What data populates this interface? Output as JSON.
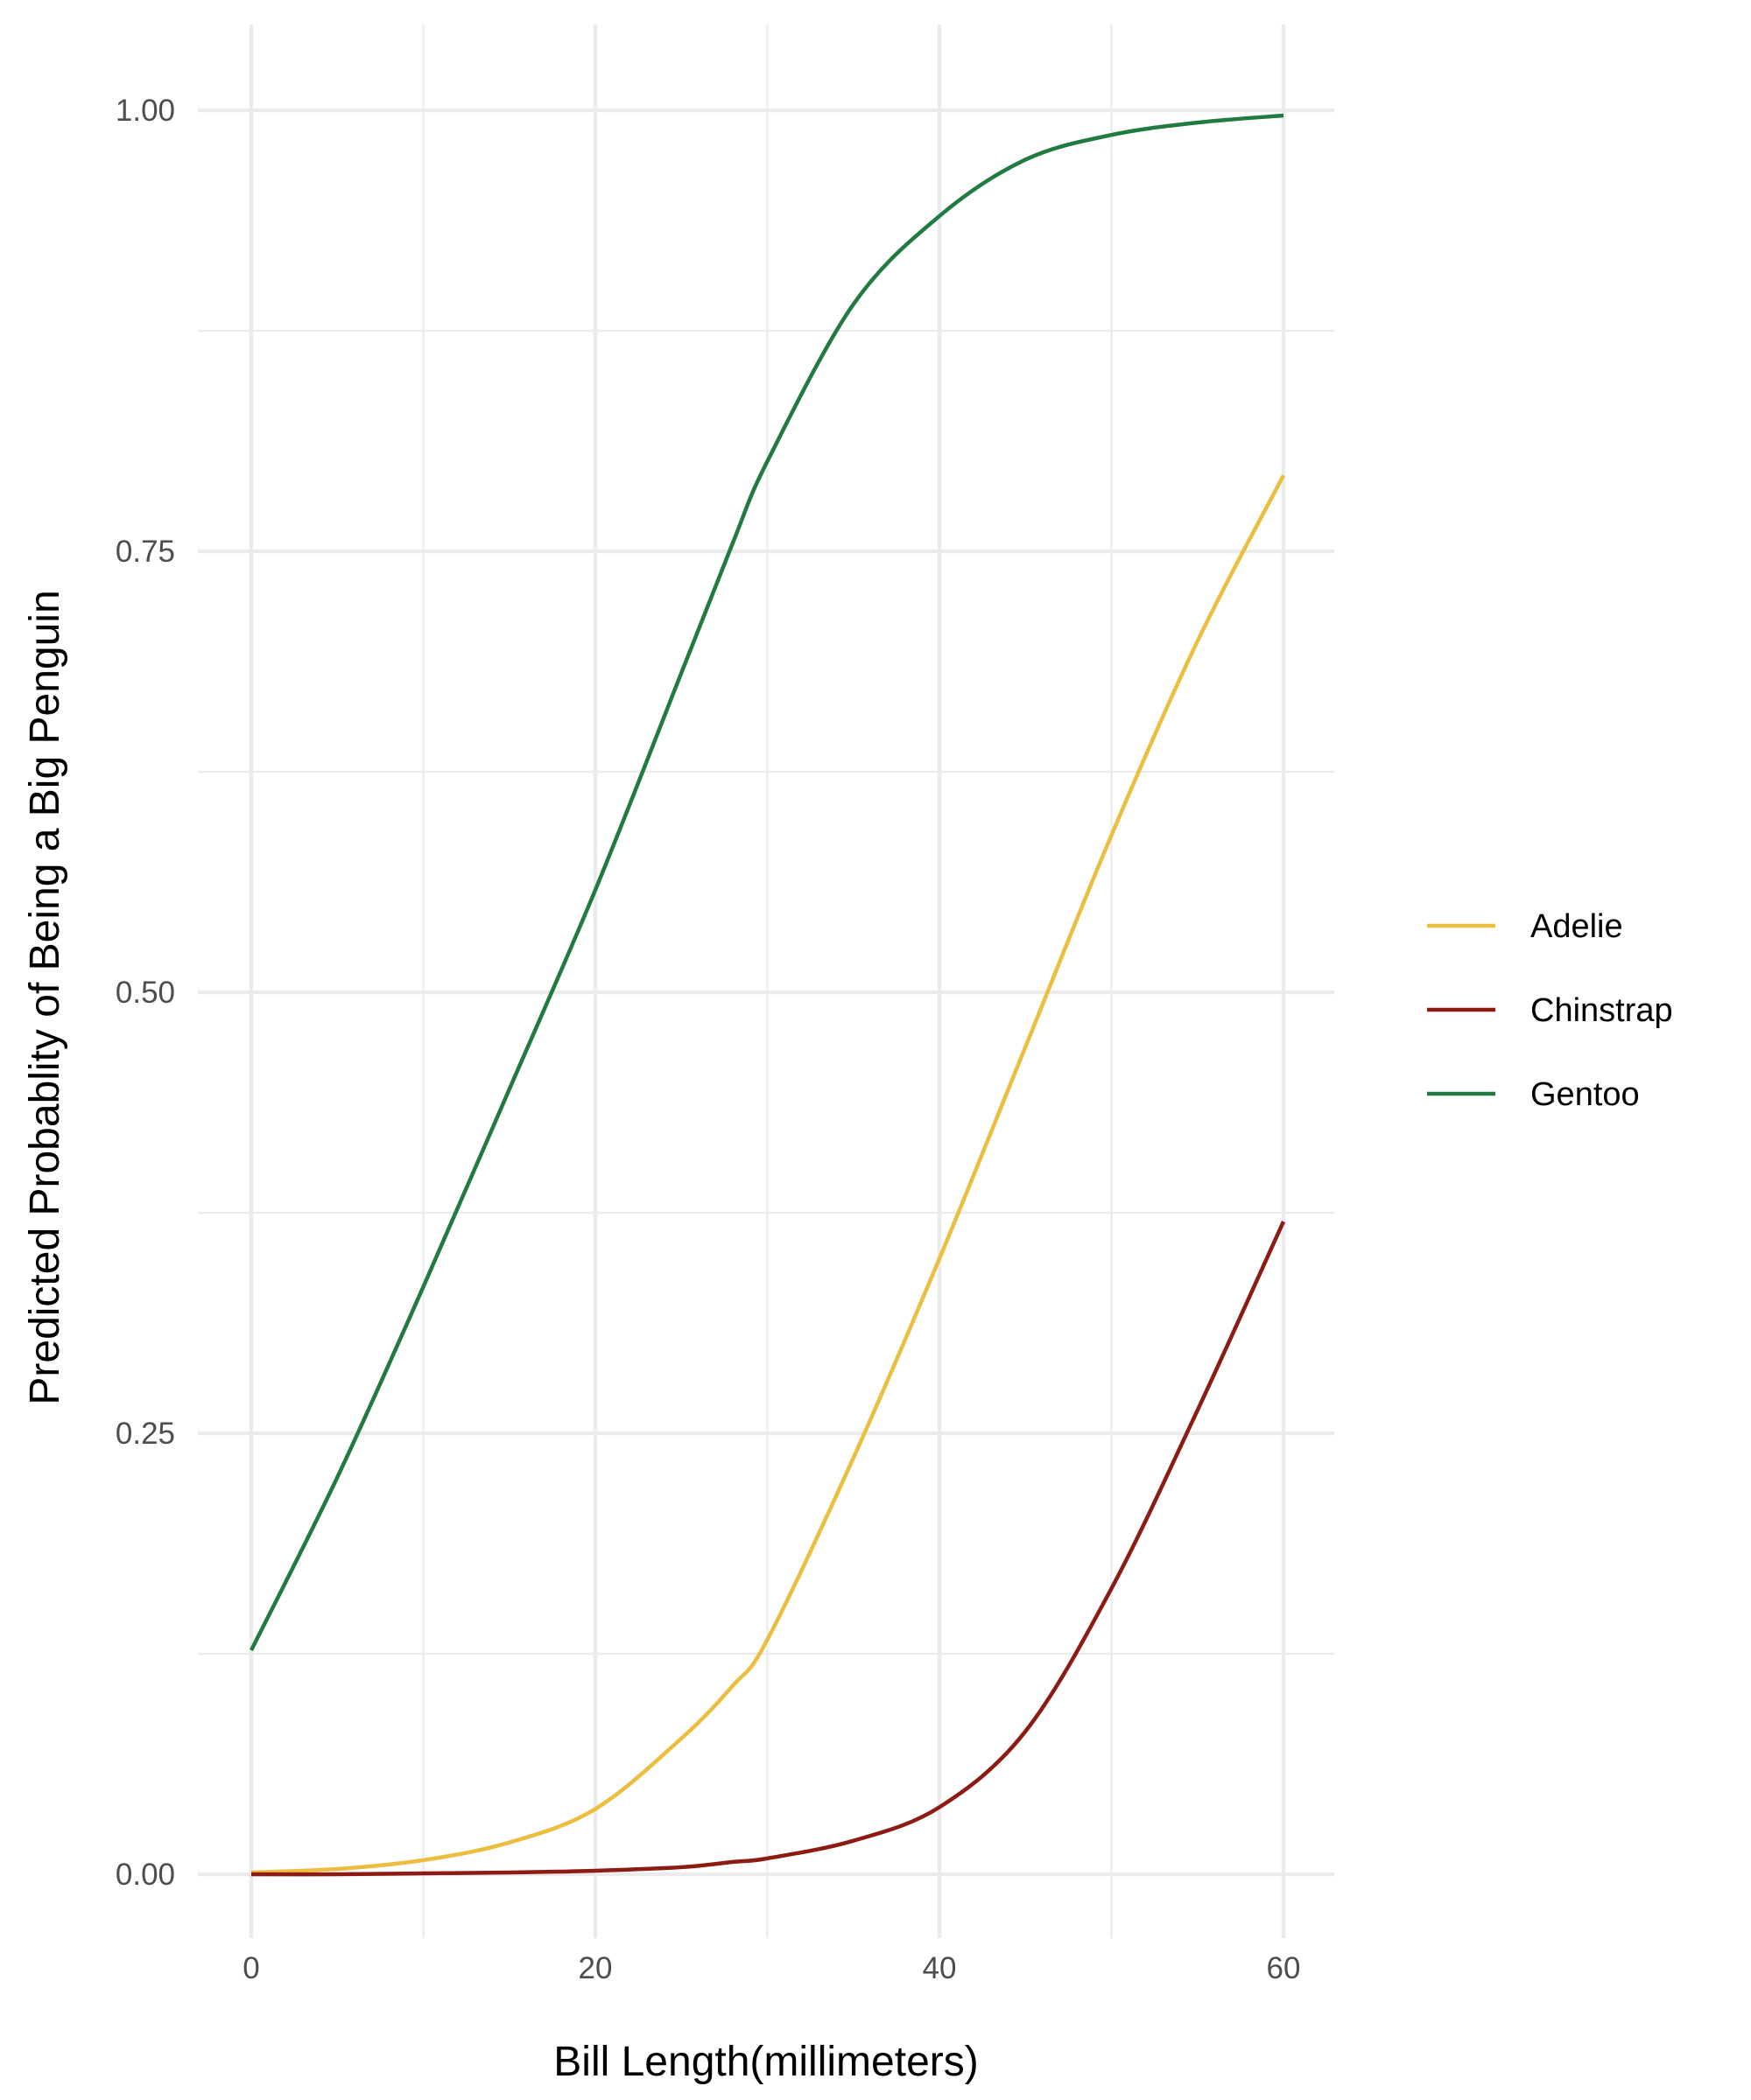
{
  "chart_data": {
    "type": "line",
    "title": "",
    "xlabel": "Bill Length(millimeters)",
    "ylabel": "Predicted Probablity of Being a Big Penguin",
    "xlim": [
      -5,
      63
    ],
    "ylim": [
      -0.04,
      1.05
    ],
    "x_ticks": [
      {
        "value": 0,
        "label": "0"
      },
      {
        "value": 20,
        "label": "20"
      },
      {
        "value": 40,
        "label": "40"
      },
      {
        "value": 60,
        "label": "60"
      }
    ],
    "x_minor_ticks": [
      10,
      30,
      50
    ],
    "y_ticks": [
      {
        "value": 0,
        "label": "0.00"
      },
      {
        "value": 0.25,
        "label": "0.25"
      },
      {
        "value": 0.5,
        "label": "0.50"
      },
      {
        "value": 0.75,
        "label": "0.75"
      },
      {
        "value": 1,
        "label": "1.00"
      }
    ],
    "y_minor_ticks": [
      0.125,
      0.375,
      0.625,
      0.875
    ],
    "grid": true,
    "legend_position": "right",
    "x": [
      0,
      5,
      10,
      15,
      20,
      25,
      28,
      30,
      35,
      40,
      45,
      50,
      55,
      60
    ],
    "series": [
      {
        "name": "Adelie",
        "color": "#EBBE3F",
        "values": [
          0.001,
          0.003,
          0.008,
          0.018,
          0.037,
          0.077,
          0.107,
          0.133,
          0.236,
          0.349,
          0.469,
          0.589,
          0.699,
          0.793
        ]
      },
      {
        "name": "Chinstrap",
        "color": "#8C1C13",
        "values": [
          0.0,
          0.0,
          0.0005,
          0.001,
          0.002,
          0.004,
          0.007,
          0.009,
          0.019,
          0.038,
          0.081,
          0.162,
          0.263,
          0.37
        ]
      },
      {
        "name": "Gentoo",
        "color": "#217A3F",
        "values": [
          0.127,
          0.225,
          0.333,
          0.445,
          0.558,
          0.681,
          0.755,
          0.801,
          0.89,
          0.94,
          0.972,
          0.986,
          0.993,
          0.997
        ]
      }
    ]
  }
}
